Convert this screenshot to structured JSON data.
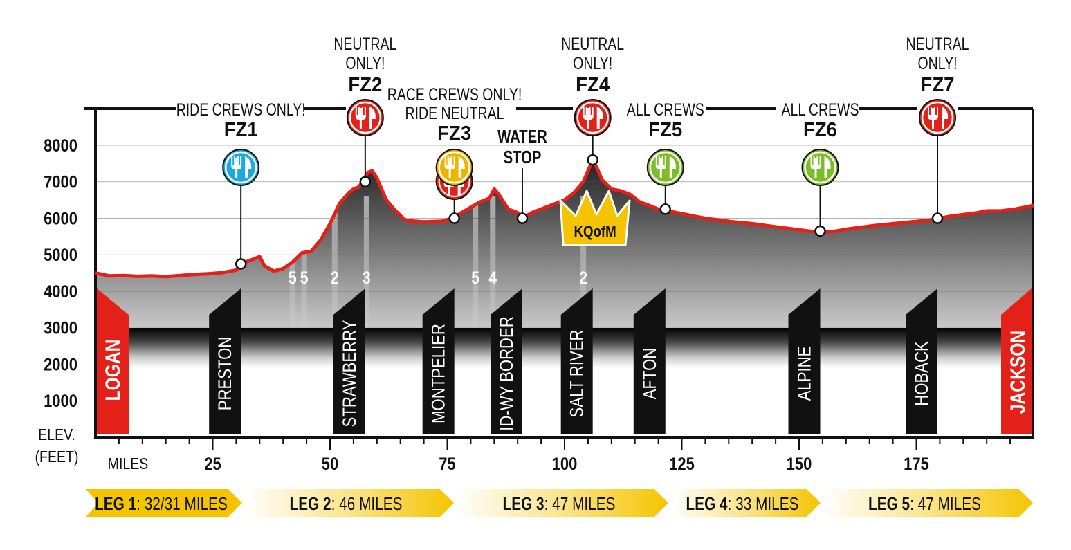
{
  "colors": {
    "elevation_line": "#e32119",
    "endpoint_red": "#e32119",
    "leg_arrow": "#f5c400",
    "fz_red": "#e32119",
    "fz_blue": "#1ea7e1",
    "fz_gold": "#f0b400",
    "fz_green": "#7dbd2a",
    "crown": "#f5c400",
    "town_bar": "#111111"
  },
  "axis": {
    "y_title_line1": "ELEV.",
    "y_title_line2": "(FEET)",
    "x_title": "MILES"
  },
  "endpoints": {
    "start": "LOGAN",
    "finish": "JACKSON"
  },
  "kqom_label": "KQofM",
  "chart_data": {
    "type": "area",
    "ylabel": "ELEV. (FEET)",
    "xlabel": "MILES",
    "ylim": [
      0,
      8000
    ],
    "xlim": [
      0,
      200
    ],
    "yticks": [
      1000,
      2000,
      3000,
      4000,
      5000,
      6000,
      7000,
      8000
    ],
    "xticks": [
      25,
      50,
      75,
      100,
      125,
      150,
      175
    ],
    "series": [
      {
        "x": [
          0,
          3,
          6,
          9,
          12,
          15,
          18,
          21,
          24,
          27,
          30,
          31,
          33,
          35,
          36,
          38,
          40,
          42,
          44,
          46,
          48,
          50,
          52,
          54,
          55,
          56,
          57,
          58,
          59,
          60,
          62,
          64,
          66,
          68,
          70,
          72,
          74,
          76,
          78,
          80,
          82,
          84,
          85,
          86,
          88,
          90,
          91,
          93,
          95,
          97,
          100,
          102,
          104,
          106,
          107,
          108,
          110,
          112,
          114,
          116,
          118,
          120,
          122,
          124,
          126,
          128,
          130,
          133,
          136,
          140,
          143,
          146,
          149,
          152,
          155,
          158,
          160,
          163,
          166,
          170,
          174,
          178,
          180,
          182,
          185,
          188,
          190,
          193,
          196,
          200
        ],
        "y": [
          4500,
          4420,
          4430,
          4410,
          4420,
          4400,
          4430,
          4460,
          4480,
          4510,
          4580,
          4750,
          4850,
          4950,
          4700,
          4550,
          4620,
          4800,
          5050,
          5100,
          5400,
          5850,
          6400,
          6700,
          6800,
          6850,
          7000,
          7250,
          7300,
          7100,
          6500,
          6200,
          5950,
          5920,
          5900,
          5910,
          5920,
          6000,
          6150,
          6300,
          6450,
          6550,
          6800,
          6650,
          6250,
          6150,
          6000,
          6150,
          6250,
          6350,
          6500,
          6700,
          7000,
          7600,
          7350,
          7050,
          6800,
          6750,
          6650,
          6450,
          6350,
          6250,
          6200,
          6150,
          6100,
          6050,
          6000,
          5950,
          5900,
          5850,
          5800,
          5750,
          5700,
          5650,
          5620,
          5650,
          5700,
          5750,
          5800,
          5850,
          5900,
          5950,
          6000,
          6050,
          6100,
          6150,
          6200,
          6200,
          6250,
          6350
        ]
      }
    ],
    "checkpoints": [
      {
        "town": "PRESTON",
        "mile": 31,
        "elev": 4750,
        "fz": "FZ1",
        "icon": "fork-knife-icon",
        "color": "blue",
        "crew_note": "RIDE CREWS ONLY!",
        "neutral": ""
      },
      {
        "town": "STRAWBERRY",
        "mile": 57.5,
        "elev": 7000,
        "fz": "FZ2",
        "icon": "fork-knife-icon",
        "color": "red",
        "crew_note": "",
        "neutral": "NEUTRAL ONLY!"
      },
      {
        "town": "MONTPELIER",
        "mile": 76.5,
        "elev": 6000,
        "fz": "FZ3",
        "icon": "fork-knife-icon",
        "color": "gold",
        "crew_note": "RACE CREWS ONLY! RIDE NEUTRAL",
        "neutral": ""
      },
      {
        "town": "ID-WY BORDER",
        "mile": 91,
        "elev": 6000,
        "fz": "",
        "icon": "",
        "color": "",
        "crew_note": "WATER STOP",
        "neutral": ""
      },
      {
        "town": "SALT RIVER",
        "mile": 106,
        "elev": 7600,
        "fz": "FZ4",
        "icon": "fork-knife-icon",
        "color": "red",
        "crew_note": "",
        "neutral": "NEUTRAL ONLY!"
      },
      {
        "town": "AFTON",
        "mile": 121.5,
        "elev": 6250,
        "fz": "FZ5",
        "icon": "fork-knife-icon",
        "color": "green",
        "crew_note": "ALL CREWS",
        "neutral": ""
      },
      {
        "town": "ALPINE",
        "mile": 154.5,
        "elev": 5650,
        "fz": "FZ6",
        "icon": "fork-knife-icon",
        "color": "green",
        "crew_note": "ALL CREWS",
        "neutral": ""
      },
      {
        "town": "HOBACK",
        "mile": 179.5,
        "elev": 6000,
        "fz": "FZ7",
        "icon": "fork-knife-icon",
        "color": "red",
        "crew_note": "",
        "neutral": "NEUTRAL ONLY!"
      }
    ],
    "climb_categories": [
      {
        "label": "5",
        "mile": 42
      },
      {
        "label": "5",
        "mile": 44.5
      },
      {
        "label": "2",
        "mile": 51
      },
      {
        "label": "3",
        "mile": 57.8
      },
      {
        "label": "5",
        "mile": 81
      },
      {
        "label": "4",
        "mile": 84.7
      },
      {
        "label": "2",
        "mile": 104
      }
    ],
    "legs": [
      {
        "name": "LEG 1",
        "distance": ": 32/31 MILES"
      },
      {
        "name": "LEG 2",
        "distance": ": 46 MILES"
      },
      {
        "name": "LEG 3",
        "distance": ": 47 MILES"
      },
      {
        "name": "LEG 4",
        "distance": ": 33 MILES"
      },
      {
        "name": "LEG 5",
        "distance": ": 47 MILES"
      }
    ]
  }
}
